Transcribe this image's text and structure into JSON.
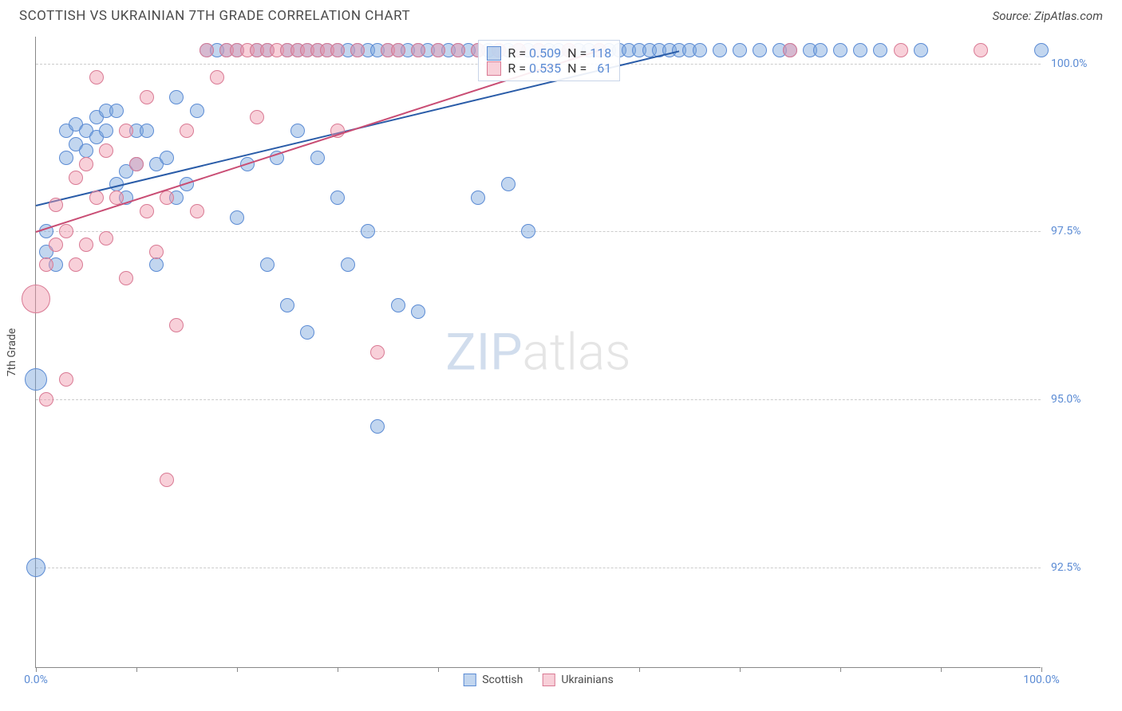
{
  "title": "SCOTTISH VS UKRAINIAN 7TH GRADE CORRELATION CHART",
  "source": "Source: ZipAtlas.com",
  "watermark_strong": "ZIP",
  "watermark_light": "atlas",
  "y_axis_label": "7th Grade",
  "chart": {
    "type": "scatter",
    "xlim": [
      0,
      100
    ],
    "ylim": [
      91,
      100.4
    ],
    "background_color": "#ffffff",
    "grid_color": "#cccccc",
    "axis_color": "#888888",
    "tick_label_color": "#5b8bd4",
    "y_ticks": [
      92.5,
      95.0,
      97.5,
      100.0
    ],
    "y_tick_labels": [
      "92.5%",
      "95.0%",
      "97.5%",
      "100.0%"
    ],
    "x_ticks": [
      0,
      10,
      20,
      30,
      40,
      50,
      60,
      70,
      80,
      90,
      100
    ],
    "x_tick_labels": {
      "0": "0.0%",
      "100": "100.0%"
    },
    "point_radius_default": 9,
    "series": [
      {
        "name": "Scottish",
        "fill": "rgba(120,165,220,0.45)",
        "stroke": "#5b8bd4",
        "trend_color": "#2a5ca8",
        "trend": {
          "x0": 0,
          "y0": 97.9,
          "x1": 64,
          "y1": 100.2
        },
        "R": "0.509",
        "N": "118",
        "points": [
          [
            0,
            92.5,
            12
          ],
          [
            0,
            95.3,
            14
          ],
          [
            1,
            97.2
          ],
          [
            1,
            97.5
          ],
          [
            2,
            97.0
          ],
          [
            3,
            98.6
          ],
          [
            3,
            99.0
          ],
          [
            4,
            98.8
          ],
          [
            4,
            99.1
          ],
          [
            5,
            98.7
          ],
          [
            5,
            99.0
          ],
          [
            6,
            98.9
          ],
          [
            6,
            99.2
          ],
          [
            7,
            99.0
          ],
          [
            7,
            99.3
          ],
          [
            8,
            98.2
          ],
          [
            8,
            99.3
          ],
          [
            9,
            98.4
          ],
          [
            9,
            98.0
          ],
          [
            10,
            99.0
          ],
          [
            10,
            98.5
          ],
          [
            11,
            99.0
          ],
          [
            12,
            98.5
          ],
          [
            12,
            97.0
          ],
          [
            13,
            98.6
          ],
          [
            14,
            98.0
          ],
          [
            14,
            99.5
          ],
          [
            15,
            98.2
          ],
          [
            16,
            99.3
          ],
          [
            17,
            100.2
          ],
          [
            18,
            100.2
          ],
          [
            19,
            100.2
          ],
          [
            20,
            97.7
          ],
          [
            20,
            100.2
          ],
          [
            21,
            98.5
          ],
          [
            22,
            100.2
          ],
          [
            23,
            97.0
          ],
          [
            23,
            100.2
          ],
          [
            24,
            98.6
          ],
          [
            25,
            96.4
          ],
          [
            25,
            100.2
          ],
          [
            26,
            99.0
          ],
          [
            26,
            100.2
          ],
          [
            27,
            96.0
          ],
          [
            27,
            100.2
          ],
          [
            28,
            98.6
          ],
          [
            28,
            100.2
          ],
          [
            29,
            100.2
          ],
          [
            30,
            98.0
          ],
          [
            30,
            100.2
          ],
          [
            31,
            97.0
          ],
          [
            31,
            100.2
          ],
          [
            32,
            100.2
          ],
          [
            33,
            97.5
          ],
          [
            33,
            100.2
          ],
          [
            34,
            94.6
          ],
          [
            34,
            100.2
          ],
          [
            35,
            100.2
          ],
          [
            36,
            96.4
          ],
          [
            36,
            100.2
          ],
          [
            37,
            100.2
          ],
          [
            38,
            96.3
          ],
          [
            38,
            100.2
          ],
          [
            39,
            100.2
          ],
          [
            40,
            100.2
          ],
          [
            41,
            100.2
          ],
          [
            42,
            100.2
          ],
          [
            43,
            100.2
          ],
          [
            44,
            98.0
          ],
          [
            44,
            100.2
          ],
          [
            45,
            100.2
          ],
          [
            46,
            100.2
          ],
          [
            47,
            98.2
          ],
          [
            47,
            100.2
          ],
          [
            48,
            100.2
          ],
          [
            49,
            97.5
          ],
          [
            49,
            100.2
          ],
          [
            50,
            100.2
          ],
          [
            51,
            100.2
          ],
          [
            52,
            100.2
          ],
          [
            53,
            100.2
          ],
          [
            54,
            100.2
          ],
          [
            55,
            100.2
          ],
          [
            56,
            100.2
          ],
          [
            57,
            100.2
          ],
          [
            58,
            100.2
          ],
          [
            59,
            100.2
          ],
          [
            60,
            100.2
          ],
          [
            61,
            100.2
          ],
          [
            62,
            100.2
          ],
          [
            63,
            100.2
          ],
          [
            64,
            100.2
          ],
          [
            65,
            100.2
          ],
          [
            66,
            100.2
          ],
          [
            68,
            100.2
          ],
          [
            70,
            100.2
          ],
          [
            72,
            100.2
          ],
          [
            74,
            100.2
          ],
          [
            75,
            100.2
          ],
          [
            77,
            100.2
          ],
          [
            78,
            100.2
          ],
          [
            80,
            100.2
          ],
          [
            82,
            100.2
          ],
          [
            84,
            100.2
          ],
          [
            88,
            100.2
          ],
          [
            100,
            100.2
          ]
        ]
      },
      {
        "name": "Ukrainians",
        "fill": "rgba(240,150,170,0.45)",
        "stroke": "#d97a94",
        "trend_color": "#c94d74",
        "trend": {
          "x0": 0,
          "y0": 97.5,
          "x1": 56,
          "y1": 100.2
        },
        "R": "0.535",
        "N": "61",
        "points": [
          [
            0,
            96.5,
            18
          ],
          [
            1,
            97.0
          ],
          [
            1,
            95.0
          ],
          [
            2,
            97.3
          ],
          [
            2,
            97.9
          ],
          [
            3,
            95.3
          ],
          [
            3,
            97.5
          ],
          [
            4,
            97.0
          ],
          [
            4,
            98.3
          ],
          [
            5,
            97.3
          ],
          [
            5,
            98.5
          ],
          [
            6,
            98.0
          ],
          [
            6,
            99.8
          ],
          [
            7,
            97.4
          ],
          [
            7,
            98.7
          ],
          [
            8,
            98.0
          ],
          [
            9,
            96.8
          ],
          [
            9,
            99.0
          ],
          [
            10,
            98.5
          ],
          [
            11,
            97.8
          ],
          [
            11,
            99.5
          ],
          [
            12,
            97.2
          ],
          [
            13,
            93.8
          ],
          [
            13,
            98.0
          ],
          [
            14,
            96.1
          ],
          [
            15,
            99.0
          ],
          [
            16,
            97.8
          ],
          [
            17,
            100.2
          ],
          [
            18,
            99.8
          ],
          [
            19,
            100.2
          ],
          [
            20,
            100.2
          ],
          [
            21,
            100.2
          ],
          [
            22,
            99.2
          ],
          [
            22,
            100.2
          ],
          [
            23,
            100.2
          ],
          [
            24,
            100.2
          ],
          [
            25,
            100.2
          ],
          [
            26,
            100.2
          ],
          [
            27,
            100.2
          ],
          [
            28,
            100.2
          ],
          [
            29,
            100.2
          ],
          [
            30,
            99.0
          ],
          [
            30,
            100.2
          ],
          [
            32,
            100.2
          ],
          [
            34,
            95.7
          ],
          [
            35,
            100.2
          ],
          [
            36,
            100.2
          ],
          [
            38,
            100.2
          ],
          [
            40,
            100.2
          ],
          [
            42,
            100.2
          ],
          [
            44,
            100.2
          ],
          [
            46,
            100.2
          ],
          [
            48,
            100.2
          ],
          [
            50,
            100.2
          ],
          [
            53,
            100.2
          ],
          [
            56,
            100.2
          ],
          [
            75,
            100.2
          ],
          [
            86,
            100.2
          ],
          [
            94,
            100.2
          ]
        ]
      }
    ]
  },
  "legend_bottom": [
    "Scottish",
    "Ukrainians"
  ]
}
